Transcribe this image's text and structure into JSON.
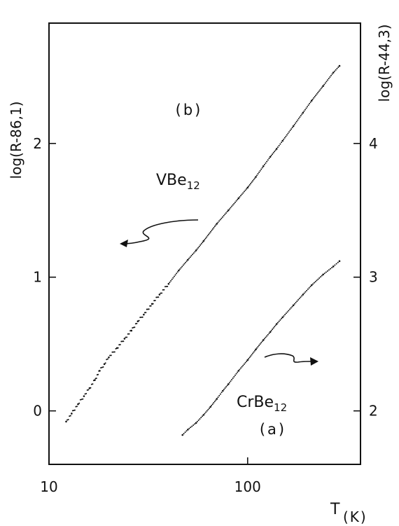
{
  "chart_data": {
    "type": "scatter",
    "x_scale": "log",
    "xlabel": "T",
    "xlabel_unit": "(K)",
    "ylabel_left": "log(R-86,1)",
    "ylabel_right": "log(R-44,3)",
    "xlim": [
      10,
      370
    ],
    "ylim_left": [
      -0.4,
      2.9
    ],
    "ylim_right": [
      1.6,
      4.9
    ],
    "x_ticks": [
      {
        "value": 10,
        "label": "10"
      },
      {
        "value": 100,
        "label": "100"
      }
    ],
    "y_ticks_left": [
      {
        "value": 0,
        "label": "0"
      },
      {
        "value": 1,
        "label": "1"
      },
      {
        "value": 2,
        "label": "2"
      }
    ],
    "y_ticks_right": [
      {
        "value": 2,
        "label": "2"
      },
      {
        "value": 3,
        "label": "3"
      },
      {
        "value": 4,
        "label": "4"
      }
    ],
    "grid": false,
    "annotations": {
      "panel_b": "(b)",
      "panel_a": "(a)"
    },
    "series": [
      {
        "name_base": "VBe",
        "name_sub": "12",
        "axis": "left",
        "x": [
          12.2,
          13,
          14,
          15,
          16,
          17,
          18,
          19,
          20,
          22,
          24,
          26,
          28,
          30,
          33,
          36,
          40,
          45,
          50,
          55,
          60,
          70,
          80,
          90,
          100,
          110,
          120,
          130,
          140,
          150,
          170,
          190,
          210,
          240,
          270,
          290
        ],
        "y": [
          -0.08,
          -0.02,
          0.05,
          0.11,
          0.17,
          0.23,
          0.3,
          0.35,
          0.4,
          0.47,
          0.54,
          0.6,
          0.67,
          0.72,
          0.8,
          0.87,
          0.95,
          1.05,
          1.13,
          1.2,
          1.27,
          1.4,
          1.5,
          1.59,
          1.67,
          1.75,
          1.83,
          1.9,
          1.96,
          2.02,
          2.13,
          2.23,
          2.32,
          2.43,
          2.53,
          2.58
        ]
      },
      {
        "name_base": "CrBe",
        "name_sub": "12",
        "axis": "right",
        "x": [
          47,
          50,
          55,
          60,
          65,
          70,
          75,
          80,
          90,
          100,
          110,
          120,
          130,
          140,
          150,
          170,
          190,
          210,
          240,
          270,
          290
        ],
        "y": [
          1.82,
          1.86,
          1.91,
          1.97,
          2.03,
          2.09,
          2.15,
          2.2,
          2.3,
          2.38,
          2.46,
          2.53,
          2.59,
          2.65,
          2.7,
          2.79,
          2.87,
          2.94,
          3.02,
          3.08,
          3.12
        ]
      }
    ]
  }
}
